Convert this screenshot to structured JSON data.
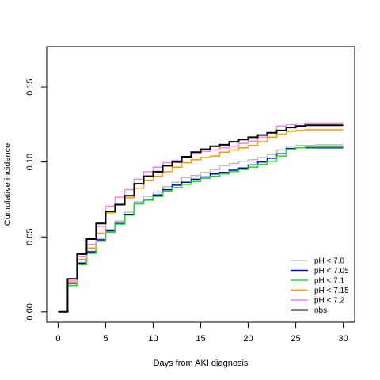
{
  "chart_data": {
    "type": "line",
    "xlabel": "Days from AKI diagnosis",
    "ylabel": "Cumulative incidence",
    "xlim": [
      -1.2,
      31.2
    ],
    "ylim": [
      -0.007,
      0.177
    ],
    "xticks": [
      0,
      5,
      10,
      15,
      20,
      25,
      30
    ],
    "xtick_labels": [
      "0",
      "5",
      "10",
      "15",
      "20",
      "25",
      "30"
    ],
    "yticks": [
      0.0,
      0.05,
      0.1,
      0.15
    ],
    "ytick_labels": [
      "0.00",
      "0.05",
      "0.10",
      "0.15"
    ],
    "grid": false,
    "legend_position": "bottom-right",
    "series": [
      {
        "name": "pH < 7.0",
        "color": "#bebebe",
        "x": [
          0,
          1,
          2,
          3,
          4,
          5,
          6,
          7,
          8,
          9,
          10,
          11,
          12,
          13,
          14,
          15,
          16,
          17,
          18,
          19,
          20,
          21,
          22,
          23,
          24,
          25,
          26,
          27,
          28,
          29,
          30
        ],
        "y": [
          0.0,
          0.0185,
          0.0325,
          0.0405,
          0.0485,
          0.055,
          0.0605,
          0.0665,
          0.0735,
          0.077,
          0.08,
          0.0835,
          0.0865,
          0.0895,
          0.091,
          0.093,
          0.095,
          0.0975,
          0.099,
          0.1005,
          0.1015,
          0.103,
          0.105,
          0.108,
          0.1105,
          0.111,
          0.111,
          0.1115,
          0.1115,
          0.1115,
          0.1115
        ]
      },
      {
        "name": "pH < 7.05",
        "color": "#0000cc",
        "x": [
          0,
          1,
          2,
          3,
          4,
          5,
          6,
          7,
          8,
          9,
          10,
          11,
          12,
          13,
          14,
          15,
          16,
          17,
          18,
          19,
          20,
          21,
          22,
          23,
          24,
          25,
          26,
          27,
          28,
          29,
          30
        ],
        "y": [
          0.0,
          0.019,
          0.0325,
          0.04,
          0.048,
          0.054,
          0.059,
          0.065,
          0.0725,
          0.075,
          0.078,
          0.0815,
          0.0845,
          0.0865,
          0.0885,
          0.09,
          0.092,
          0.093,
          0.0945,
          0.096,
          0.098,
          0.1,
          0.1025,
          0.1055,
          0.109,
          0.1095,
          0.1095,
          0.1095,
          0.1095,
          0.1095,
          0.1095
        ]
      },
      {
        "name": "pH < 7.1",
        "color": "#22dd22",
        "x": [
          0,
          1,
          2,
          3,
          4,
          5,
          6,
          7,
          8,
          9,
          10,
          11,
          12,
          13,
          14,
          15,
          16,
          17,
          18,
          19,
          20,
          21,
          22,
          23,
          24,
          25,
          26,
          27,
          28,
          29,
          30
        ],
        "y": [
          0.0,
          0.0175,
          0.0315,
          0.039,
          0.047,
          0.053,
          0.0585,
          0.0645,
          0.072,
          0.0745,
          0.077,
          0.0805,
          0.083,
          0.085,
          0.087,
          0.089,
          0.0905,
          0.092,
          0.0935,
          0.095,
          0.0965,
          0.0985,
          0.1005,
          0.104,
          0.1085,
          0.1095,
          0.11,
          0.11,
          0.11,
          0.11,
          0.11
        ]
      },
      {
        "name": "pH < 7.15",
        "color": "#ff9900",
        "x": [
          0,
          1,
          2,
          3,
          4,
          5,
          6,
          7,
          8,
          9,
          10,
          11,
          12,
          13,
          14,
          15,
          16,
          17,
          18,
          19,
          20,
          21,
          22,
          23,
          24,
          25,
          26,
          27,
          28,
          29,
          30
        ],
        "y": [
          0.0,
          0.0195,
          0.035,
          0.0425,
          0.0525,
          0.066,
          0.0715,
          0.076,
          0.0825,
          0.0875,
          0.0905,
          0.0935,
          0.0965,
          0.0995,
          0.1015,
          0.103,
          0.104,
          0.1065,
          0.108,
          0.1095,
          0.111,
          0.1135,
          0.1165,
          0.1185,
          0.1205,
          0.121,
          0.1215,
          0.1215,
          0.1215,
          0.1215,
          0.1215
        ]
      },
      {
        "name": "pH < 7.2",
        "color": "#ee88ee",
        "x": [
          0,
          1,
          2,
          3,
          4,
          5,
          6,
          7,
          8,
          9,
          10,
          11,
          12,
          13,
          14,
          15,
          16,
          17,
          18,
          19,
          20,
          21,
          22,
          23,
          24,
          25,
          26,
          27,
          28,
          29,
          30
        ],
        "y": [
          0.0,
          0.0205,
          0.037,
          0.045,
          0.057,
          0.0705,
          0.0765,
          0.0815,
          0.0885,
          0.0935,
          0.0965,
          0.0995,
          0.101,
          0.1035,
          0.1055,
          0.107,
          0.108,
          0.1095,
          0.1105,
          0.1125,
          0.114,
          0.1165,
          0.1195,
          0.124,
          0.125,
          0.1255,
          0.126,
          0.126,
          0.126,
          0.126,
          0.126
        ]
      },
      {
        "name": "obs",
        "color": "#000000",
        "x": [
          0,
          1,
          2,
          3,
          4,
          5,
          6,
          7,
          8,
          9,
          10,
          11,
          12,
          13,
          14,
          15,
          16,
          17,
          18,
          19,
          20,
          21,
          22,
          23,
          24,
          25,
          26,
          27,
          28,
          29,
          30
        ],
        "y": [
          0.0,
          0.022,
          0.0385,
          0.0485,
          0.059,
          0.067,
          0.0715,
          0.0775,
          0.0855,
          0.0905,
          0.0935,
          0.0975,
          0.1,
          0.1035,
          0.1065,
          0.1085,
          0.1105,
          0.1115,
          0.1135,
          0.115,
          0.1165,
          0.118,
          0.1195,
          0.121,
          0.123,
          0.124,
          0.1245,
          0.1245,
          0.1245,
          0.1245,
          0.1245
        ]
      }
    ]
  }
}
